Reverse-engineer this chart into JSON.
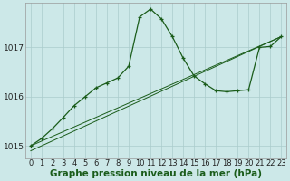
{
  "xlabel": "Graphe pression niveau de la mer (hPa)",
  "x_values": [
    0,
    1,
    2,
    3,
    4,
    5,
    6,
    7,
    8,
    9,
    10,
    11,
    12,
    13,
    14,
    15,
    16,
    17,
    18,
    19,
    20,
    21,
    22,
    23
  ],
  "line1_pts": [
    [
      0,
      1015.0
    ],
    [
      23,
      1017.22
    ]
  ],
  "line2_pts": [
    [
      0,
      1014.9
    ],
    [
      23,
      1017.22
    ]
  ],
  "line3": [
    1015.0,
    1015.15,
    1015.35,
    1015.58,
    1015.82,
    1016.0,
    1016.18,
    1016.28,
    1016.38,
    1016.62,
    1017.62,
    1017.78,
    1017.58,
    1017.22,
    1016.78,
    1016.42,
    1016.26,
    1016.12,
    1016.1,
    1016.12,
    1016.14,
    1017.0,
    1017.02,
    1017.22
  ],
  "ylim": [
    1014.75,
    1017.9
  ],
  "yticks": [
    1015,
    1016,
    1017
  ],
  "xlim": [
    -0.5,
    23.5
  ],
  "bg_color": "#cce8e8",
  "line_color": "#1a5c1a",
  "grid_color": "#aacccc",
  "tick_fontsize": 6.0,
  "label_fontsize": 7.5
}
